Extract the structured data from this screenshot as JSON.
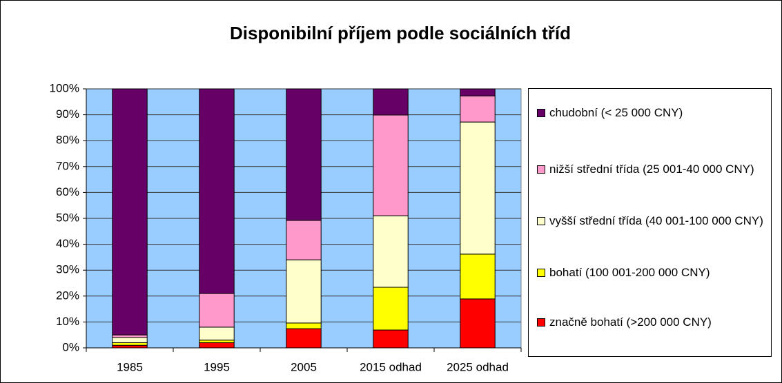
{
  "chart_data": {
    "type": "stacked_bar",
    "title": "Disponibilní příjem podle sociálních tříd",
    "categories": [
      "1985",
      "1995",
      "2005",
      "2015 odhad",
      "2025 odhad"
    ],
    "series": [
      {
        "name": "značně bohatí (>200 000 CNY)",
        "color": "#ff0000",
        "values": [
          1,
          2,
          7.4,
          6.9,
          18.9
        ]
      },
      {
        "name": "bohatí (100 001-200 000 CNY)",
        "color": "#ffff00",
        "values": [
          1,
          1,
          2.2,
          16.5,
          17.3
        ]
      },
      {
        "name": "vyšší střední třída (40 001-100 000 CNY)",
        "color": "#ffffcc",
        "values": [
          2,
          5,
          24.4,
          27.6,
          51
        ]
      },
      {
        "name": "nižší střední třída (25 001-40 000 CNY)",
        "color": "#ff99cc",
        "values": [
          1,
          13,
          15.2,
          38.9,
          10.1
        ]
      },
      {
        "name": "chudobní (< 25 000 CNY)",
        "color": "#660066",
        "values": [
          95,
          79,
          50.8,
          10.1,
          2.7
        ]
      }
    ],
    "ylim": [
      0,
      100
    ],
    "yticks": [
      {
        "value": 0,
        "label": "0%"
      },
      {
        "value": 10,
        "label": "10%"
      },
      {
        "value": 20,
        "label": "20%"
      },
      {
        "value": 30,
        "label": "30%"
      },
      {
        "value": 40,
        "label": "40%"
      },
      {
        "value": 50,
        "label": "50%"
      },
      {
        "value": 60,
        "label": "60%"
      },
      {
        "value": 70,
        "label": "70%"
      },
      {
        "value": 80,
        "label": "80%"
      },
      {
        "value": 90,
        "label": "90%"
      },
      {
        "value": 100,
        "label": "100%"
      }
    ],
    "grid": true,
    "plot_background": "#99ccff",
    "legend": "right"
  }
}
